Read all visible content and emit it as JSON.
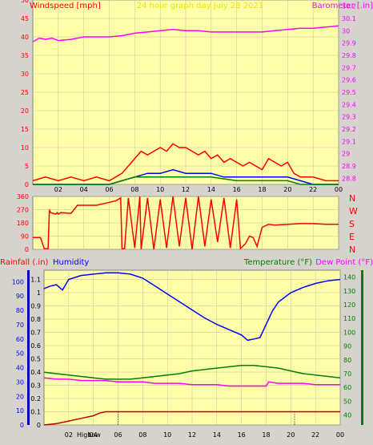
{
  "chart_data": [
    {
      "type": "line",
      "title": "24 hour graph day   July 28 2021",
      "left_label": "Windspeed [mph]",
      "right_label": "Barometer [.in]",
      "x_ticks": [
        "02",
        "04",
        "06",
        "08",
        "10",
        "12",
        "14",
        "16",
        "18",
        "20",
        "22",
        "00"
      ],
      "y_left_ticks": [
        "0",
        "5",
        "10",
        "15",
        "20",
        "25",
        "30",
        "35",
        "40",
        "45",
        "50"
      ],
      "y_left_range": [
        0,
        50
      ],
      "y_right_ticks": [
        "28.8",
        "28.9",
        "29",
        "29.1",
        "29.2",
        "29.3",
        "29.4",
        "29.5",
        "29.6",
        "29.7",
        "29.8",
        "29.9",
        "30",
        "30.1",
        "30.2"
      ],
      "y_right_range": [
        28.75,
        30.25
      ],
      "series": [
        {
          "role": "barometer",
          "color": "#ff00ff",
          "hours": [
            0,
            0.5,
            1,
            1.5,
            2,
            3,
            4,
            5,
            6,
            7,
            8,
            9,
            10,
            11,
            12,
            13,
            14,
            15,
            16,
            17,
            18,
            19,
            20,
            21,
            22,
            23,
            24
          ],
          "values": [
            29.91,
            29.94,
            29.93,
            29.94,
            29.92,
            29.93,
            29.95,
            29.95,
            29.95,
            29.96,
            29.98,
            29.99,
            30.0,
            30.01,
            30.0,
            30.0,
            29.99,
            29.99,
            29.99,
            29.99,
            29.99,
            30.0,
            30.01,
            30.02,
            30.02,
            30.03,
            30.04
          ]
        },
        {
          "role": "wind-gust",
          "color": "#ff0000",
          "hours": [
            0,
            1,
            2,
            3,
            4,
            5,
            6,
            6.5,
            7,
            7.5,
            8,
            8.5,
            9,
            9.5,
            10,
            10.5,
            11,
            11.5,
            12,
            12.5,
            13,
            13.5,
            14,
            14.5,
            15,
            15.5,
            16,
            16.5,
            17,
            17.5,
            18,
            18.5,
            19,
            19.5,
            20,
            20.5,
            21,
            22,
            23,
            24
          ],
          "values": [
            1,
            2,
            1,
            2,
            1,
            2,
            1,
            2,
            3,
            5,
            7,
            9,
            8,
            9,
            10,
            9,
            11,
            10,
            10,
            9,
            8,
            9,
            7,
            8,
            6,
            7,
            6,
            5,
            6,
            5,
            4,
            7,
            6,
            5,
            6,
            3,
            2,
            2,
            1,
            1
          ]
        },
        {
          "role": "wind-average",
          "color": "#0000ff",
          "hours": [
            0,
            2,
            4,
            6,
            7,
            8,
            9,
            10,
            11,
            12,
            13,
            14,
            15,
            16,
            17,
            18,
            19,
            20,
            21,
            22,
            23,
            24
          ],
          "values": [
            0,
            0,
            0,
            0,
            1,
            2,
            3,
            3,
            4,
            3,
            3,
            3,
            2,
            2,
            2,
            2,
            2,
            2,
            1,
            0,
            0,
            0
          ]
        },
        {
          "role": "wind-direction-variance",
          "color": "#008000",
          "hours": [
            0,
            6,
            7,
            8,
            10,
            12,
            14,
            16,
            18,
            20,
            21,
            24
          ],
          "values": [
            0,
            0,
            1,
            2,
            2,
            2,
            2,
            1,
            1,
            1,
            0,
            0
          ]
        }
      ]
    },
    {
      "type": "line",
      "right_label": "N W S E N",
      "y_left_ticks": [
        "0",
        "90",
        "180",
        "270",
        "360"
      ],
      "y_left_range": [
        0,
        360
      ],
      "x_ticks": [],
      "series": [
        {
          "role": "wind-direction",
          "color": "#ff0000",
          "hours": [
            0,
            0.6,
            0.9,
            1.2,
            1.3,
            1.4,
            1.8,
            1.9,
            2.0,
            2.2,
            3.0,
            3.5,
            4.0,
            5.0,
            5.5,
            6.0,
            6.5,
            6.9,
            7.0,
            7.2,
            7.5,
            8.0,
            8.4,
            8.5,
            9.0,
            9.5,
            10.0,
            10.5,
            11.0,
            11.5,
            12.0,
            12.5,
            13.0,
            13.5,
            14.0,
            14.5,
            15.0,
            15.5,
            16.0,
            16.3,
            16.7,
            17.0,
            17.3,
            17.6,
            18.0,
            18.5,
            19.0,
            20.0,
            21.0,
            22.0,
            23.0,
            24.0
          ],
          "values": [
            80,
            80,
            5,
            5,
            270,
            250,
            240,
            250,
            240,
            250,
            245,
            300,
            300,
            300,
            310,
            320,
            330,
            350,
            5,
            5,
            350,
            10,
            360,
            0,
            350,
            0,
            340,
            10,
            360,
            20,
            350,
            0,
            360,
            20,
            340,
            50,
            350,
            10,
            340,
            5,
            40,
            90,
            80,
            20,
            150,
            170,
            165,
            170,
            175,
            175,
            170,
            170
          ]
        }
      ]
    },
    {
      "type": "line",
      "left_label": "Rainfall (.in)",
      "left_label_2": "Humidity",
      "right_label": "Temperature (°F)",
      "right_label_2": "Dew Point (°F)",
      "x_ticks": [
        "02",
        "04",
        "06",
        "08",
        "10",
        "12",
        "14",
        "16",
        "18",
        "20",
        "22",
        "00"
      ],
      "x_markers": [
        "High",
        "Low"
      ],
      "y_left_ticks": [
        "0",
        "0.1",
        "0.2",
        "0.3",
        "0.4",
        "0.5",
        "0.6",
        "0.7",
        "0.8",
        "0.9",
        "1",
        "1.1"
      ],
      "y_left_range": [
        0,
        1.17
      ],
      "y_left_ticks_2": [
        "0",
        "10",
        "20",
        "30",
        "40",
        "50",
        "60",
        "70",
        "80",
        "90",
        "100"
      ],
      "y_right_ticks": [
        "40",
        "50",
        "60",
        "70",
        "80",
        "90",
        "100",
        "110",
        "120",
        "130",
        "140"
      ],
      "y_right_range": [
        32.8,
        145
      ],
      "series": [
        {
          "role": "humidity",
          "color": "#0000ff",
          "hours": [
            0,
            0.5,
            1,
            1.5,
            2,
            3,
            4,
            5,
            6,
            7,
            8,
            9,
            10,
            11,
            12,
            13,
            14,
            15,
            16,
            16.5,
            17,
            17.5,
            18,
            18.5,
            19,
            20,
            21,
            22,
            23,
            24
          ],
          "values": [
            1.03,
            1.05,
            1.06,
            1.02,
            1.1,
            1.13,
            1.14,
            1.15,
            1.15,
            1.14,
            1.11,
            1.05,
            0.99,
            0.93,
            0.87,
            0.81,
            0.76,
            0.72,
            0.68,
            0.64,
            0.65,
            0.66,
            0.76,
            0.86,
            0.93,
            1.0,
            1.04,
            1.07,
            1.09,
            1.1
          ]
        },
        {
          "role": "temperature",
          "color": "#008000",
          "hours": [
            0,
            1,
            2,
            3,
            4,
            5,
            6,
            7,
            8,
            9,
            10,
            11,
            12,
            13,
            14,
            15,
            16,
            17,
            18,
            19,
            20,
            21,
            22,
            23,
            24
          ],
          "values": [
            71,
            70,
            69,
            68,
            67,
            66,
            66,
            66,
            67,
            68,
            69,
            70,
            72,
            73,
            74,
            75,
            76,
            76,
            75,
            74,
            72,
            70,
            69,
            68,
            67
          ]
        },
        {
          "role": "dew-point",
          "color": "#ff00ff",
          "hours": [
            0,
            1,
            2,
            3,
            4,
            5,
            6,
            7,
            8,
            9,
            10,
            11,
            12,
            13,
            14,
            15,
            16,
            17,
            18,
            18.2,
            19,
            20,
            21,
            22,
            23,
            24
          ],
          "values": [
            67,
            66,
            66,
            65,
            65,
            65,
            64,
            64,
            64,
            63,
            63,
            63,
            62,
            62,
            62,
            61,
            61,
            61,
            61,
            64,
            63,
            63,
            63,
            62,
            62,
            62
          ]
        },
        {
          "role": "rainfall",
          "color": "#c00000",
          "hours": [
            0,
            1,
            2,
            3,
            4,
            4.5,
            5,
            24
          ],
          "values": [
            0,
            0.01,
            0.03,
            0.05,
            0.07,
            0.09,
            0.1,
            0.1
          ]
        }
      ]
    }
  ]
}
